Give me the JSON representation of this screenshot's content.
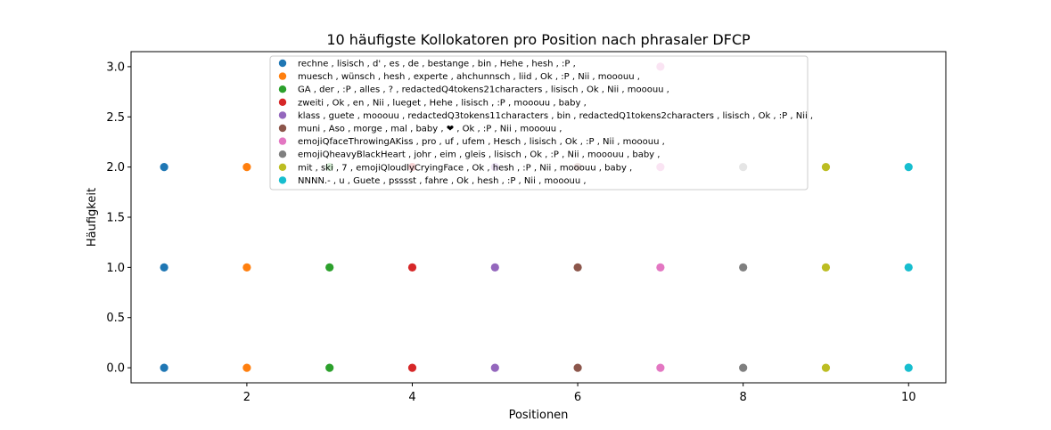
{
  "chart_data": {
    "type": "scatter",
    "title": "10 häufigste Kollokatoren pro Position nach phrasaler DFCP",
    "xlabel": "Positionen",
    "ylabel": "Häufigkeit",
    "xlim": [
      0.6,
      10.45
    ],
    "ylim": [
      -0.15,
      3.15
    ],
    "xticks": [
      "2",
      "4",
      "6",
      "8",
      "10"
    ],
    "xtick_values": [
      2,
      4,
      6,
      8,
      10
    ],
    "yticks": [
      "0.0",
      "0.5",
      "1.0",
      "1.5",
      "2.0",
      "2.5",
      "3.0"
    ],
    "ytick_values": [
      0,
      0.5,
      1,
      1.5,
      2,
      2.5,
      3
    ],
    "grid": false,
    "legend_position": "top-center",
    "series": [
      {
        "name": "rechne , lisisch , d' , es , de , bestange , bin , Hehe , hesh , :P ,",
        "color": "#1f77b4",
        "x": [
          1,
          1,
          1
        ],
        "y": [
          0,
          1,
          2
        ]
      },
      {
        "name": "muesch , wünsch , hesh , experte , ahchunnsch , liid , Ok , :P , Nii , mooouu ,",
        "color": "#ff7f0e",
        "x": [
          2,
          2,
          2
        ],
        "y": [
          0,
          1,
          2
        ]
      },
      {
        "name": "GA , der , :P , alles , ? , redactedQ4tokens21characters , lisisch , Ok , Nii , mooouu ,",
        "color": "#2ca02c",
        "x": [
          3,
          3,
          3
        ],
        "y": [
          0,
          1,
          2
        ]
      },
      {
        "name": "zweiti , Ok , en , Nii , lueget , Hehe , lisisch , :P , mooouu , baby ,",
        "color": "#d62728",
        "x": [
          4,
          4,
          4
        ],
        "y": [
          0,
          1,
          2
        ]
      },
      {
        "name": "klass , guete , mooouu , redactedQ3tokens11characters , bin , redactedQ1tokens2characters , lisisch , Ok , :P , Nii ,",
        "color": "#9467bd",
        "x": [
          5,
          5,
          5
        ],
        "y": [
          0,
          1,
          2
        ]
      },
      {
        "name": "muni , Aso , morge , mal , baby , ❤ , Ok , :P , Nii , mooouu ,",
        "color": "#8c564b",
        "x": [
          6,
          6,
          6
        ],
        "y": [
          0,
          1,
          2
        ]
      },
      {
        "name": "emojiQfaceThrowingAKiss , pro , uf , ufem , Hesch , lisisch , Ok , :P , Nii , mooouu ,",
        "color": "#e377c2",
        "x": [
          7,
          7,
          7,
          7
        ],
        "y": [
          0,
          1,
          2,
          3
        ]
      },
      {
        "name": "emojiQheavyBlackHeart , johr , eim , gleis , lisisch , Ok , :P , Nii , mooouu , baby ,",
        "color": "#7f7f7f",
        "x": [
          8,
          8,
          8
        ],
        "y": [
          0,
          1,
          2
        ]
      },
      {
        "name": "mit , ski , 7 , emojiQloudlyCryingFace , Ok , hesh , :P , Nii , mooouu , baby ,",
        "color": "#bcbd22",
        "x": [
          9,
          9,
          9
        ],
        "y": [
          0,
          1,
          2
        ]
      },
      {
        "name": "NNNN.- , u , Guete , psssst , fahre , Ok , hesh , :P , Nii , mooouu ,",
        "color": "#17becf",
        "x": [
          10,
          10,
          10
        ],
        "y": [
          0,
          1,
          2
        ]
      }
    ]
  }
}
